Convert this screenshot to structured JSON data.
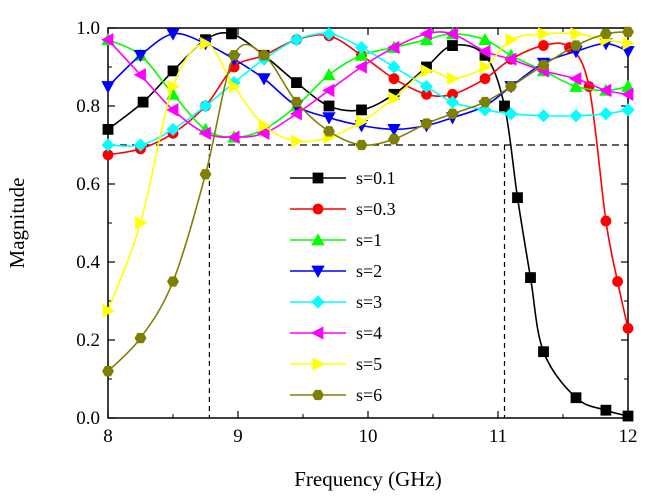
{
  "chart_data": {
    "type": "line",
    "title": "",
    "xlabel": "Frequency (GHz)",
    "ylabel": "Magnitude",
    "xlim": [
      8,
      12
    ],
    "ylim": [
      0.0,
      1.0
    ],
    "xticks": [
      "8",
      "9",
      "10",
      "11",
      "12"
    ],
    "yticks": [
      "0.0",
      "0.2",
      "0.4",
      "0.6",
      "0.8",
      "1.0"
    ],
    "reference_lines": {
      "horizontal_y": 0.7,
      "vertical_x": [
        8.78,
        11.05
      ]
    },
    "legend_position": "center",
    "series": [
      {
        "name": "s=0.1",
        "color": "#000000",
        "marker": "square",
        "points": [
          [
            8.0,
            0.74
          ],
          [
            8.27,
            0.81
          ],
          [
            8.5,
            0.89
          ],
          [
            8.75,
            0.97
          ],
          [
            8.95,
            0.985
          ],
          [
            9.2,
            0.93
          ],
          [
            9.45,
            0.86
          ],
          [
            9.7,
            0.8
          ],
          [
            9.95,
            0.79
          ],
          [
            10.2,
            0.83
          ],
          [
            10.45,
            0.9
          ],
          [
            10.65,
            0.955
          ],
          [
            10.9,
            0.93
          ],
          [
            11.05,
            0.8
          ],
          [
            11.15,
            0.565
          ],
          [
            11.25,
            0.36
          ],
          [
            11.35,
            0.17
          ],
          [
            11.6,
            0.052
          ],
          [
            11.83,
            0.02
          ],
          [
            12.0,
            0.005
          ]
        ]
      },
      {
        "name": "s=0.3",
        "color": "#ff0000",
        "marker": "circle",
        "points": [
          [
            8.0,
            0.675
          ],
          [
            8.25,
            0.69
          ],
          [
            8.5,
            0.73
          ],
          [
            8.75,
            0.8
          ],
          [
            8.97,
            0.9
          ],
          [
            9.2,
            0.93
          ],
          [
            9.45,
            0.97
          ],
          [
            9.7,
            0.98
          ],
          [
            9.95,
            0.93
          ],
          [
            10.2,
            0.87
          ],
          [
            10.45,
            0.83
          ],
          [
            10.65,
            0.83
          ],
          [
            10.9,
            0.87
          ],
          [
            11.1,
            0.92
          ],
          [
            11.35,
            0.955
          ],
          [
            11.55,
            0.95
          ],
          [
            11.7,
            0.85
          ],
          [
            11.83,
            0.505
          ],
          [
            11.92,
            0.35
          ],
          [
            12.0,
            0.23
          ]
        ]
      },
      {
        "name": "s=1",
        "color": "#00ff00",
        "marker": "triangle-up",
        "points": [
          [
            8.0,
            0.97
          ],
          [
            8.25,
            0.93
          ],
          [
            8.5,
            0.83
          ],
          [
            8.75,
            0.74
          ],
          [
            8.97,
            0.72
          ],
          [
            9.2,
            0.74
          ],
          [
            9.45,
            0.8
          ],
          [
            9.7,
            0.88
          ],
          [
            9.95,
            0.93
          ],
          [
            10.2,
            0.95
          ],
          [
            10.45,
            0.97
          ],
          [
            10.65,
            0.985
          ],
          [
            10.9,
            0.97
          ],
          [
            11.1,
            0.93
          ],
          [
            11.35,
            0.89
          ],
          [
            11.6,
            0.85
          ],
          [
            11.83,
            0.84
          ],
          [
            12.0,
            0.85
          ]
        ]
      },
      {
        "name": "s=2",
        "color": "#0000ff",
        "marker": "triangle-down",
        "points": [
          [
            8.0,
            0.85
          ],
          [
            8.25,
            0.93
          ],
          [
            8.5,
            0.985
          ],
          [
            8.75,
            0.96
          ],
          [
            8.97,
            0.92
          ],
          [
            9.2,
            0.87
          ],
          [
            9.45,
            0.8
          ],
          [
            9.7,
            0.77
          ],
          [
            9.95,
            0.75
          ],
          [
            10.2,
            0.74
          ],
          [
            10.45,
            0.75
          ],
          [
            10.65,
            0.77
          ],
          [
            10.9,
            0.8
          ],
          [
            11.1,
            0.85
          ],
          [
            11.35,
            0.91
          ],
          [
            11.6,
            0.94
          ],
          [
            11.83,
            0.96
          ],
          [
            12.0,
            0.94
          ]
        ]
      },
      {
        "name": "s=3",
        "color": "#00ffff",
        "marker": "diamond",
        "points": [
          [
            8.0,
            0.7
          ],
          [
            8.25,
            0.7
          ],
          [
            8.5,
            0.74
          ],
          [
            8.75,
            0.8
          ],
          [
            8.97,
            0.86
          ],
          [
            9.2,
            0.92
          ],
          [
            9.45,
            0.97
          ],
          [
            9.7,
            0.985
          ],
          [
            9.95,
            0.95
          ],
          [
            10.2,
            0.9
          ],
          [
            10.45,
            0.85
          ],
          [
            10.65,
            0.81
          ],
          [
            10.9,
            0.79
          ],
          [
            11.1,
            0.78
          ],
          [
            11.35,
            0.775
          ],
          [
            11.6,
            0.775
          ],
          [
            11.83,
            0.78
          ],
          [
            12.0,
            0.79
          ]
        ]
      },
      {
        "name": "s=4",
        "color": "#ff00ff",
        "marker": "triangle-left",
        "points": [
          [
            8.0,
            0.97
          ],
          [
            8.25,
            0.88
          ],
          [
            8.5,
            0.79
          ],
          [
            8.75,
            0.73
          ],
          [
            8.97,
            0.72
          ],
          [
            9.2,
            0.73
          ],
          [
            9.45,
            0.78
          ],
          [
            9.7,
            0.84
          ],
          [
            9.95,
            0.9
          ],
          [
            10.2,
            0.95
          ],
          [
            10.45,
            0.985
          ],
          [
            10.65,
            0.985
          ],
          [
            10.9,
            0.94
          ],
          [
            11.1,
            0.92
          ],
          [
            11.35,
            0.89
          ],
          [
            11.6,
            0.87
          ],
          [
            11.83,
            0.84
          ],
          [
            12.0,
            0.83
          ]
        ]
      },
      {
        "name": "s=5",
        "color": "#ffff00",
        "marker": "triangle-right",
        "points": [
          [
            8.0,
            0.275
          ],
          [
            8.25,
            0.5
          ],
          [
            8.5,
            0.85
          ],
          [
            8.75,
            0.96
          ],
          [
            8.97,
            0.85
          ],
          [
            9.2,
            0.75
          ],
          [
            9.45,
            0.71
          ],
          [
            9.7,
            0.72
          ],
          [
            9.95,
            0.76
          ],
          [
            10.2,
            0.82
          ],
          [
            10.45,
            0.89
          ],
          [
            10.65,
            0.87
          ],
          [
            10.9,
            0.9
          ],
          [
            11.1,
            0.97
          ],
          [
            11.35,
            0.985
          ],
          [
            11.6,
            0.985
          ],
          [
            11.83,
            0.97
          ],
          [
            12.0,
            0.96
          ]
        ]
      },
      {
        "name": "s=6",
        "color": "#808000",
        "marker": "hexagon",
        "points": [
          [
            8.0,
            0.12
          ],
          [
            8.25,
            0.205
          ],
          [
            8.5,
            0.35
          ],
          [
            8.75,
            0.625
          ],
          [
            8.97,
            0.93
          ],
          [
            9.2,
            0.93
          ],
          [
            9.45,
            0.81
          ],
          [
            9.7,
            0.735
          ],
          [
            9.95,
            0.7
          ],
          [
            10.2,
            0.715
          ],
          [
            10.45,
            0.755
          ],
          [
            10.65,
            0.78
          ],
          [
            10.9,
            0.81
          ],
          [
            11.1,
            0.85
          ],
          [
            11.35,
            0.905
          ],
          [
            11.6,
            0.955
          ],
          [
            11.83,
            0.985
          ],
          [
            12.0,
            0.99
          ]
        ]
      }
    ]
  }
}
